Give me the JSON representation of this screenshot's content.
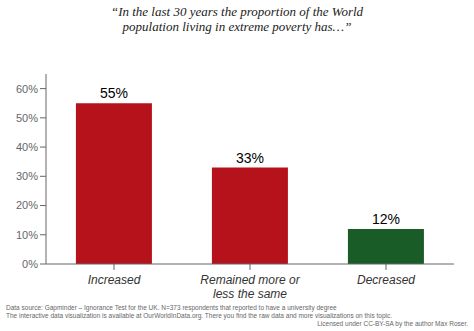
{
  "chart_data": {
    "type": "bar",
    "title": "“In the last 30 years the proportion of the World\npopulation living in extreme poverty has…”",
    "categories": [
      "Increased",
      "Remained more or\nless the same",
      "Decreased"
    ],
    "values": [
      55,
      33,
      12
    ],
    "value_labels": [
      "55%",
      "33%",
      "12%"
    ],
    "colors": [
      "#b5121b",
      "#b5121b",
      "#1a5c28"
    ],
    "ylim": [
      0,
      65
    ],
    "yticks": [
      {
        "value": 0,
        "label": "0%"
      },
      {
        "value": 10,
        "label": "10%"
      },
      {
        "value": 20,
        "label": "20%"
      },
      {
        "value": 30,
        "label": "30%"
      },
      {
        "value": 40,
        "label": "40%"
      },
      {
        "value": 50,
        "label": "50%"
      },
      {
        "value": 60,
        "label": "60%"
      }
    ],
    "grid": false,
    "annotations": [
      "Data source: Gapminder – Ignorance Test for the UK. N=373 respondents that reported to have a university degree\nThe interactive data visualization is available at OurWorldInData.org.  There you find the raw data and more visualizations on this topic.",
      "Licensed under CC-BY-SA by the author Max Roser."
    ]
  }
}
